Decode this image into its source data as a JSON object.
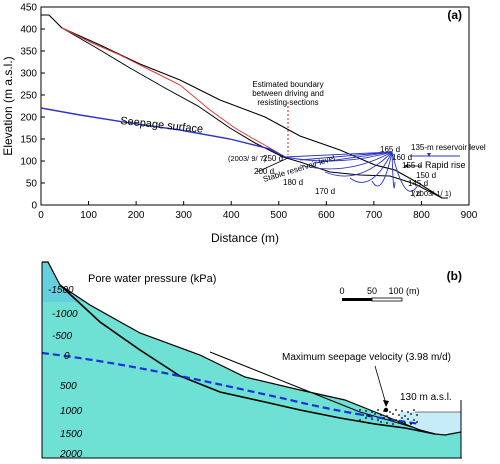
{
  "panel_a": {
    "label": "(a)",
    "xlabel": "Distance (m)",
    "ylabel": "Elevation (m a.s.l.)",
    "x_ticks": [
      "0",
      "100",
      "200",
      "300",
      "400",
      "500",
      "600",
      "700",
      "800",
      "900"
    ],
    "y_ticks": [
      "0",
      "50",
      "100",
      "150",
      "200",
      "250",
      "300",
      "350",
      "400",
      "450"
    ],
    "annotations": {
      "boundary": [
        "Estimated boundary",
        "between driving and",
        "resisting sections"
      ],
      "seepage_surface": "Seepage surface",
      "reservoir_level": "135-m reservoir level",
      "rapid_rise": "Rapid rise",
      "stable_reservoir": "Stable reservoir level",
      "date_start": "(2003/ 9/ 7)",
      "date_end": "(2003/ 1/ 1)"
    },
    "day_labels": [
      "250 d",
      "200 d",
      "180 d",
      "170 d",
      "165 d",
      "160 d",
      "155 d",
      "150 d",
      "145 d",
      "1 d"
    ]
  },
  "panel_b": {
    "label": "(b)",
    "title": "Pore water pressure (kPa)",
    "scale_labels": [
      "0",
      "50",
      "100 (m)"
    ],
    "max_velocity": "Maximum seepage velocity (3.98 m/d)",
    "water_level": "130 m a.s.l.",
    "contour_labels": [
      "-1500",
      "-1000",
      "-500",
      "0",
      "500",
      "1000",
      "1500",
      "2000"
    ]
  },
  "colors": {
    "topography": "#000000",
    "failure_surface": "#e03a3a",
    "seepage": "#2b35c8",
    "boundary": "#d02020",
    "reservoir": "#c5ecf7"
  }
}
